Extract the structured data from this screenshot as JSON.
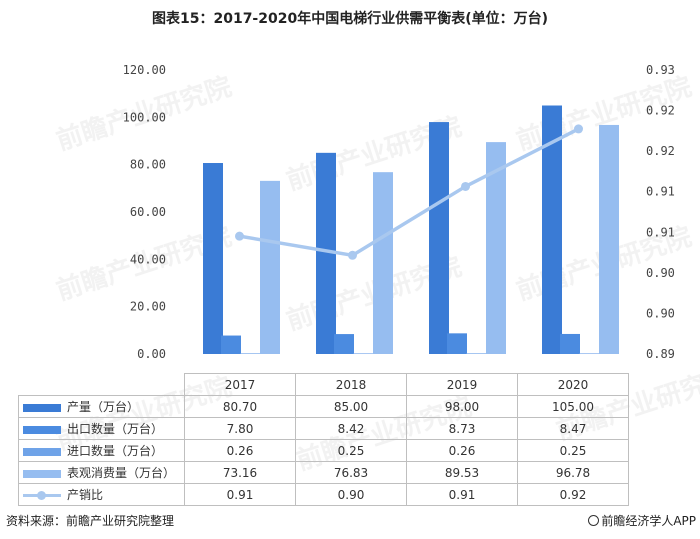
{
  "header": {
    "title": "图表15：2017-2020年中国电梯行业供需平衡表(单位：万台)"
  },
  "watermark": {
    "text": "前瞻产业研究院"
  },
  "footer": {
    "source": "资料来源：前瞻产业研究院整理",
    "brand": "前瞻经济学人APP"
  },
  "chart_data": {
    "type": "bar",
    "categories": [
      "2017",
      "2018",
      "2019",
      "2020"
    ],
    "series": [
      {
        "name": "产量（万台）",
        "values": [
          80.7,
          85.0,
          98.0,
          105.0
        ],
        "color": "#3a7bd5",
        "axis": "left",
        "kind": "bar"
      },
      {
        "name": "出口数量（万台）",
        "values": [
          7.8,
          8.42,
          8.73,
          8.47
        ],
        "color": "#4b8be0",
        "axis": "left",
        "kind": "bar"
      },
      {
        "name": "进口数量（万台）",
        "values": [
          0.26,
          0.25,
          0.26,
          0.25
        ],
        "color": "#6fa3e8",
        "axis": "left",
        "kind": "bar"
      },
      {
        "name": "表观消费量（万台）",
        "values": [
          73.16,
          76.83,
          89.53,
          96.78
        ],
        "color": "#96bdf0",
        "axis": "left",
        "kind": "bar"
      },
      {
        "name": "产销比",
        "values": [
          0.9066,
          0.9039,
          0.9136,
          0.9217
        ],
        "color": "#a9c8ef",
        "axis": "right",
        "kind": "line"
      }
    ],
    "table_values": [
      [
        "80.70",
        "85.00",
        "98.00",
        "105.00"
      ],
      [
        "7.80",
        "8.42",
        "8.73",
        "8.47"
      ],
      [
        "0.26",
        "0.25",
        "0.26",
        "0.25"
      ],
      [
        "73.16",
        "76.83",
        "89.53",
        "96.78"
      ],
      [
        "0.91",
        "0.90",
        "0.91",
        "0.92"
      ]
    ],
    "y_left": {
      "min": 0,
      "max": 120,
      "ticks": [
        "0.00",
        "20.00",
        "40.00",
        "60.00",
        "80.00",
        "100.00",
        "120.00"
      ]
    },
    "y_right": {
      "min": 0.89,
      "max": 0.93,
      "ticks": [
        "0.89",
        "0.90",
        "0.90",
        "0.91",
        "0.91",
        "0.92",
        "0.92",
        "0.93"
      ]
    },
    "grid": false,
    "legend": "table-left"
  }
}
